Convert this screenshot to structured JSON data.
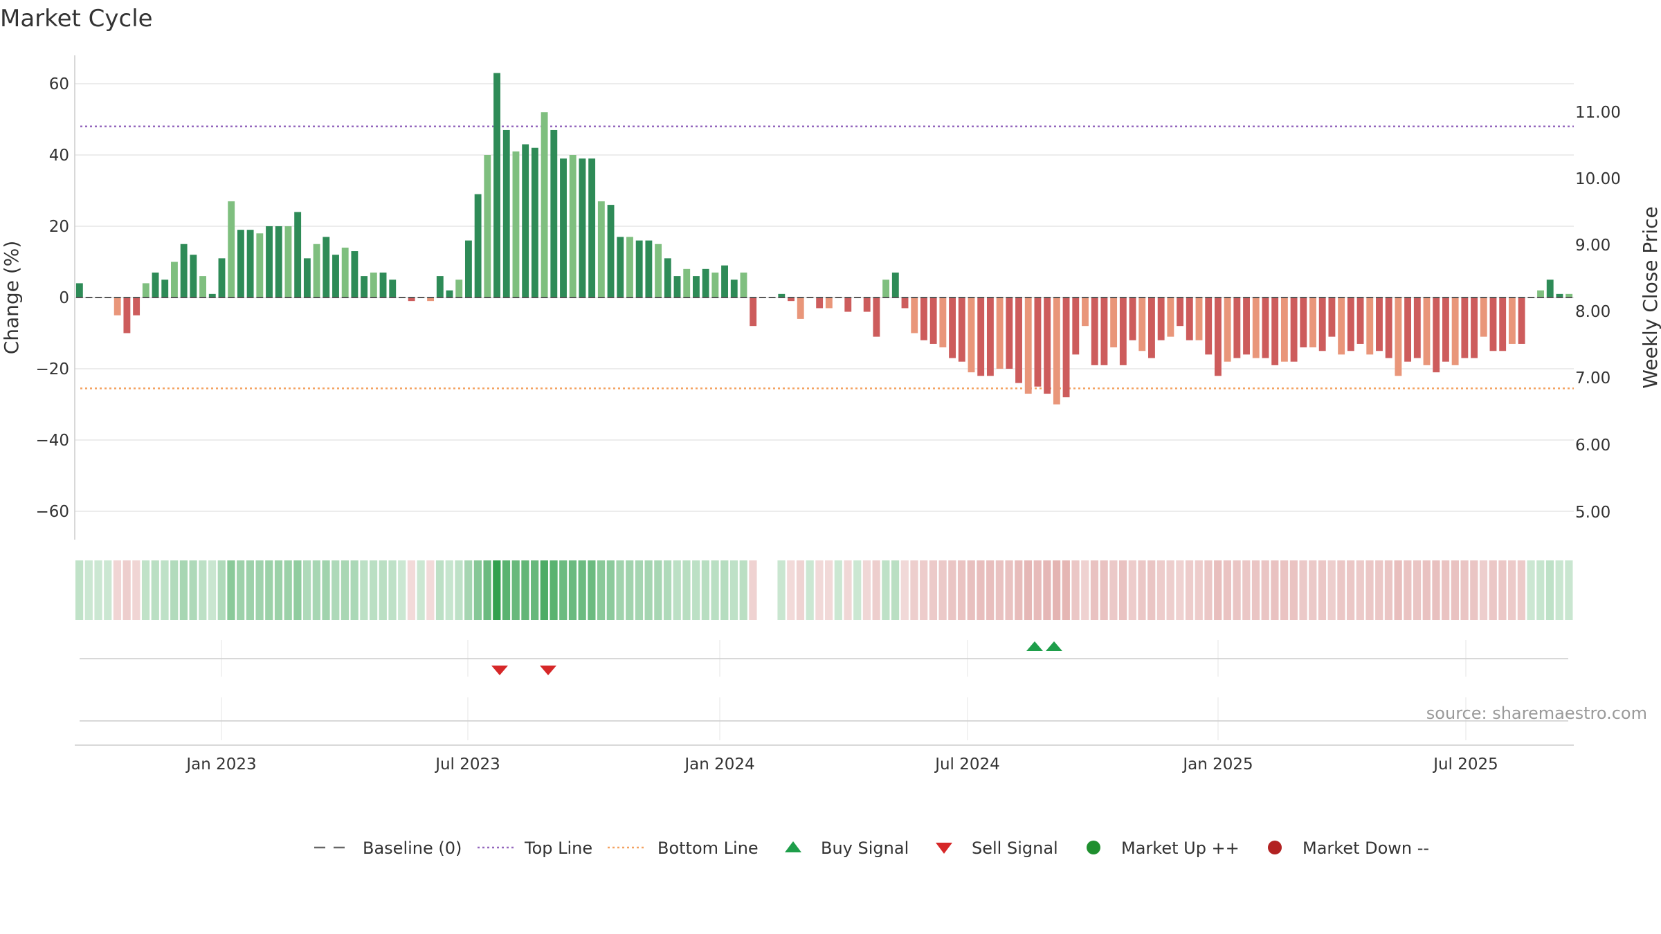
{
  "chart_data": {
    "type": "bar",
    "title": "Market Cycle",
    "ylabel": "Change (%)",
    "y2label": "Weekly Close Price",
    "ylim": [
      -68,
      68
    ],
    "yticks": [
      "60",
      "40",
      "20",
      "0",
      "−20",
      "−40",
      "−60"
    ],
    "y2ticks": [
      "11.00",
      "10.00",
      "9.00",
      "8.00",
      "7.00",
      "6.00",
      "5.00"
    ],
    "xticks": [
      "Jan 2023",
      "Jul 2023",
      "Jan 2024",
      "Jul 2024",
      "Jan 2025",
      "Jul 2025"
    ],
    "top_line": 48,
    "bottom_line": -25.5,
    "source": "source: sharemaestro.com",
    "colors": {
      "up_strong": "#2e8b57",
      "up_light": "#7fbf7f",
      "down_strong": "#cd5c5c",
      "down_light": "#e9967a",
      "top_line": "#9467bd",
      "bottom_line": "#f4a261",
      "buy": "#1e9e4a",
      "sell": "#d62728",
      "market_up": "#1e8f2e",
      "market_down": "#b22222",
      "baseline": "#666666"
    },
    "legend": [
      {
        "label": "Baseline (0)",
        "kind": "dash"
      },
      {
        "label": "Top Line",
        "kind": "dot-purple"
      },
      {
        "label": "Bottom Line",
        "kind": "dot-orange"
      },
      {
        "label": "Buy Signal",
        "kind": "tri-up"
      },
      {
        "label": "Sell Signal",
        "kind": "tri-down"
      },
      {
        "label": "Market Up ++",
        "kind": "circle-green"
      },
      {
        "label": "Market Down --",
        "kind": "circle-red"
      }
    ],
    "weekly_change": [
      4,
      0,
      0,
      0,
      -5,
      -10,
      -5,
      4,
      7,
      5,
      10,
      15,
      12,
      6,
      1,
      11,
      27,
      19,
      19,
      18,
      20,
      20,
      20,
      24,
      11,
      15,
      17,
      12,
      14,
      13,
      6,
      7,
      7,
      5,
      0,
      -1,
      0,
      -1,
      6,
      2,
      5,
      16,
      29,
      40,
      63,
      47,
      41,
      43,
      42,
      52,
      47,
      39,
      40,
      39,
      39,
      27,
      26,
      17,
      17,
      16,
      16,
      15,
      11,
      6,
      8,
      6,
      8,
      7,
      9,
      5,
      7,
      -8,
      0,
      0,
      1,
      -1,
      -6,
      0,
      -3,
      -3,
      0,
      -4,
      0,
      -4,
      -11,
      5,
      7,
      -3,
      -10,
      -12,
      -13,
      -14,
      -17,
      -18,
      -21,
      -22,
      -22,
      -20,
      -20,
      -24,
      -27,
      -25,
      -27,
      -30,
      -28,
      -16,
      -8,
      -19,
      -19,
      -14,
      -19,
      -12,
      -15,
      -17,
      -12,
      -11,
      -8,
      -12,
      -12,
      -16,
      -22,
      -18,
      -17,
      -16,
      -17,
      -17,
      -19,
      -18,
      -18,
      -14,
      -14,
      -15,
      -11,
      -16,
      -15,
      -13,
      -16,
      -15,
      -17,
      -22,
      -18,
      -17,
      -19,
      -21,
      -18,
      -19,
      -17,
      -17,
      -11,
      -15,
      -15,
      -13,
      -13,
      0,
      2,
      5,
      1,
      1
    ],
    "buy_signals": [
      "2024-09",
      "2024-09"
    ],
    "sell_signals": [
      "2023-07",
      "2023-09"
    ]
  }
}
